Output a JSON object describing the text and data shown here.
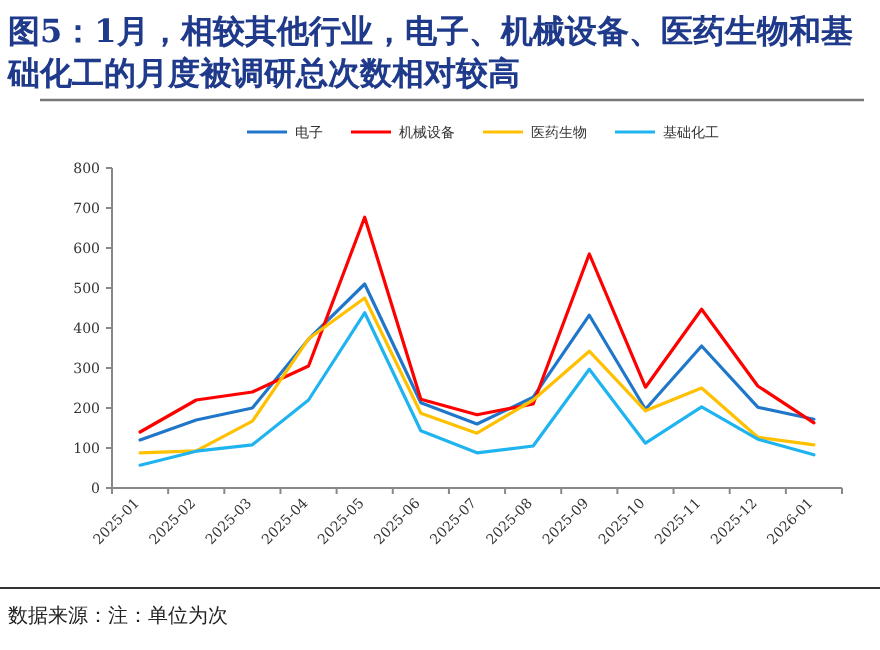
{
  "chart_data": {
    "type": "line",
    "title": "图5：1月，相较其他行业，电子、机械设备、医药生物和基础化工的月度被调研总次数相对较高",
    "categories": [
      "2025-01",
      "2025-02",
      "2025-03",
      "2025-04",
      "2025-05",
      "2025-06",
      "2025-07",
      "2025-08",
      "2025-09",
      "2025-10",
      "2025-11",
      "2025-12",
      "2026-01"
    ],
    "series": [
      {
        "name": "电子",
        "color": "#2077c9",
        "values": [
          120,
          170,
          200,
          372,
          510,
          213,
          160,
          227,
          432,
          197,
          355,
          202,
          172
        ]
      },
      {
        "name": "机械设备",
        "color": "#ff0000",
        "values": [
          140,
          220,
          240,
          305,
          677,
          222,
          183,
          210,
          585,
          252,
          447,
          255,
          163
        ]
      },
      {
        "name": "医药生物",
        "color": "#ffc000",
        "values": [
          88,
          93,
          167,
          373,
          475,
          187,
          137,
          220,
          342,
          193,
          250,
          127,
          108
        ]
      },
      {
        "name": "基础化工",
        "color": "#1fb4f0",
        "values": [
          57,
          92,
          108,
          220,
          438,
          143,
          88,
          105,
          297,
          112,
          203,
          122,
          83
        ]
      }
    ],
    "ylim": [
      0,
      800
    ],
    "yticks": [
      0,
      100,
      200,
      300,
      400,
      500,
      600,
      700,
      800
    ],
    "legend": "top",
    "grid": false,
    "marker": "none",
    "line_style": "solid",
    "annotations": [
      "数据来源：注：单位为次"
    ]
  }
}
